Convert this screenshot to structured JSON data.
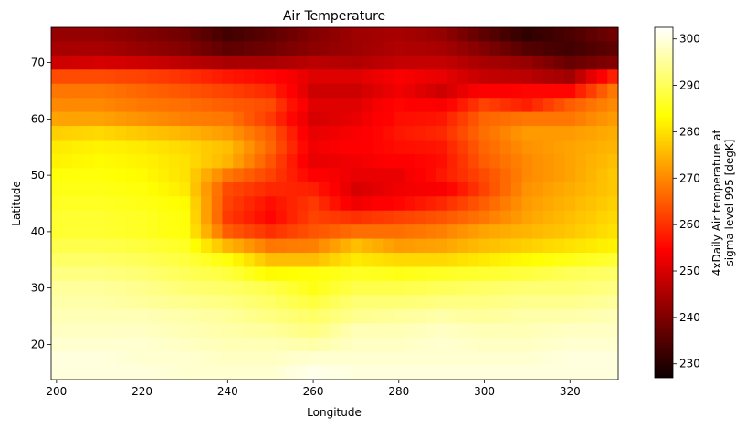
{
  "chart_data": {
    "type": "heatmap",
    "title": "Air Temperature",
    "xlabel": "Longitude",
    "ylabel": "Latitude",
    "colorbar_label": [
      "4xDaily Air temperature at",
      "sigma level 995 [degK]"
    ],
    "colormap": "hot",
    "xlim": [
      198.75,
      331.25
    ],
    "ylim": [
      13.75,
      76.25
    ],
    "clim": [
      227,
      302.5
    ],
    "x_ticks": [
      200,
      220,
      240,
      260,
      280,
      300,
      320
    ],
    "y_ticks": [
      20,
      30,
      40,
      50,
      60,
      70
    ],
    "colorbar_ticks": [
      230,
      240,
      250,
      260,
      270,
      280,
      290,
      300
    ],
    "lon_start": 200,
    "lon_step": 2.5,
    "lon_count": 53,
    "lat_start": 75,
    "lat_step": -2.5,
    "lat_count": 25,
    "rows_lat": [
      75,
      72.5,
      70,
      67.5,
      65,
      62.5,
      60,
      57.5,
      55,
      52.5,
      50,
      47.5,
      45,
      42.5,
      40,
      37.5,
      35,
      32.5,
      30,
      27.5,
      25,
      22.5,
      20,
      17.5,
      15
    ],
    "profiles_lon": [
      200,
      210,
      220,
      230,
      240,
      250,
      260,
      270,
      280,
      290,
      300,
      310,
      320,
      330
    ],
    "profiles": [
      [
        242,
        242,
        240,
        238,
        233,
        236,
        240,
        243,
        244,
        242,
        236,
        231,
        234,
        238
      ],
      [
        244,
        244,
        242,
        240,
        236,
        238,
        241,
        243,
        245,
        244,
        240,
        235,
        233,
        236
      ],
      [
        248,
        249,
        248,
        246,
        244,
        244,
        246,
        245,
        247,
        247,
        244,
        242,
        237,
        240
      ],
      [
        263,
        263,
        262,
        260,
        257,
        255,
        250,
        250,
        253,
        251,
        247,
        246,
        243,
        258
      ],
      [
        268,
        268,
        266,
        264,
        262,
        259,
        248,
        248,
        252,
        248,
        254,
        255,
        255,
        268
      ],
      [
        270,
        270,
        268,
        267,
        265,
        263,
        250,
        250,
        255,
        253,
        262,
        258,
        265,
        270
      ],
      [
        273,
        273,
        271,
        269,
        268,
        261,
        249,
        251,
        256,
        257,
        266,
        268,
        268,
        272
      ],
      [
        278,
        279,
        277,
        275,
        272,
        265,
        251,
        253,
        257,
        259,
        267,
        272,
        272,
        274
      ],
      [
        281,
        282,
        281,
        279,
        276,
        266,
        252,
        254,
        256,
        257,
        266,
        271,
        273,
        275
      ],
      [
        282,
        283,
        282,
        280,
        275,
        264,
        251,
        252,
        254,
        256,
        265,
        270,
        273,
        276
      ],
      [
        284,
        284,
        283,
        280,
        268,
        262,
        254,
        251,
        251,
        257,
        263,
        270,
        273,
        277
      ],
      [
        285,
        285,
        284,
        281,
        263,
        259,
        258,
        249,
        252,
        253,
        262,
        271,
        274,
        277
      ],
      [
        286,
        286,
        285,
        283,
        262,
        256,
        261,
        252,
        255,
        259,
        265,
        272,
        275,
        278
      ],
      [
        287,
        287,
        286,
        284,
        261,
        255,
        262,
        260,
        262,
        264,
        268,
        273,
        276,
        279
      ],
      [
        287,
        287,
        286,
        284,
        265,
        260,
        264,
        267,
        267,
        269,
        273,
        275,
        277,
        280
      ],
      [
        289,
        289,
        288,
        286,
        275,
        268,
        269,
        276,
        272,
        273,
        276,
        278,
        280,
        282
      ],
      [
        291,
        291,
        290,
        288,
        284,
        276,
        276,
        281,
        279,
        279,
        281,
        283,
        285,
        287
      ],
      [
        293,
        293,
        292,
        290,
        288,
        283,
        284,
        286,
        285,
        286,
        287,
        288,
        290,
        291
      ],
      [
        295,
        295,
        294,
        292,
        291,
        289,
        285,
        289,
        289,
        290,
        291,
        292,
        292,
        293
      ],
      [
        296,
        296,
        295,
        294,
        293,
        291,
        288,
        292,
        292,
        293,
        293,
        294,
        294,
        295
      ],
      [
        297,
        297,
        297,
        296,
        295,
        293,
        291,
        294,
        295,
        296,
        295,
        296,
        296,
        297
      ],
      [
        298,
        298,
        298,
        297,
        296,
        295,
        293,
        297,
        297,
        298,
        297,
        297,
        298,
        298
      ],
      [
        299,
        299,
        299,
        298,
        297,
        297,
        296,
        298,
        298,
        299,
        298,
        298,
        299,
        299
      ],
      [
        300,
        300,
        299,
        299,
        298,
        298,
        299,
        299,
        299,
        299,
        299,
        299,
        300,
        300
      ],
      [
        300,
        300,
        300,
        299,
        299,
        299,
        301,
        300,
        300,
        300,
        300,
        300,
        300,
        300
      ]
    ]
  }
}
